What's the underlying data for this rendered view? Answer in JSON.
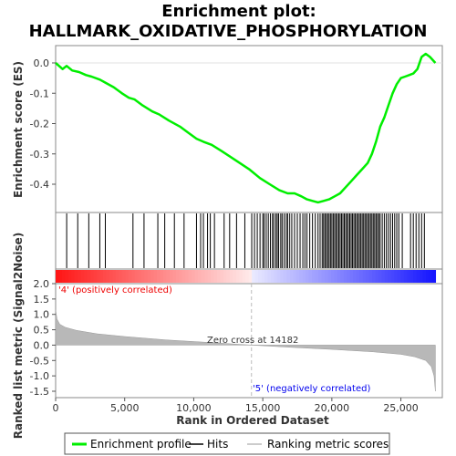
{
  "chart_data": {
    "type": "line",
    "title_line1": "Enrichment plot:",
    "title_line2": "HALLMARK_OXIDATIVE_PHOSPHORYLATION",
    "ylabel_top": "Enrichment score (ES)",
    "ylabel_bottom": "Ranked list metric (Signal2Noise)",
    "xlabel": "Rank in Ordered Dataset",
    "xlim": [
      0,
      28000
    ],
    "es_ylim": [
      -0.5,
      0.05
    ],
    "metric_ylim": [
      -1.6,
      2.0
    ],
    "x_ticks": [
      0,
      5000,
      10000,
      15000,
      20000,
      25000
    ],
    "x_tick_labels": [
      "0",
      "5,000",
      "10,000",
      "15,000",
      "20,000",
      "25,000"
    ],
    "es_ticks": [
      0.0,
      -0.1,
      -0.2,
      -0.3,
      -0.4
    ],
    "es_tick_labels": [
      "0.0",
      "-0.1",
      "-0.2",
      "-0.3",
      "-0.4"
    ],
    "metric_ticks": [
      2.0,
      1.5,
      1.0,
      0.5,
      0.0,
      -0.5,
      -1.0,
      -1.5
    ],
    "metric_tick_labels": [
      "2.0",
      "1.5",
      "1.0",
      "0.5",
      "0.0",
      "-0.5",
      "-1.0",
      "-1.5"
    ],
    "positive_label": "'4' (positively correlated)",
    "negative_label": "'5' (negatively correlated)",
    "zero_cross_label": "Zero cross at 14182",
    "zero_cross": 14182,
    "n_genes": 27500,
    "legend": [
      "Enrichment profile",
      "Hits",
      "Ranking metric scores"
    ],
    "colors": {
      "enrichment": "#00ee00",
      "hits": "#000000",
      "metric_fill": "#b8b8b8",
      "positive_text": "#ee0000",
      "negative_text": "#0000ee",
      "zero_line": "#bbbbbb"
    },
    "es_profile": {
      "x": [
        0,
        500,
        800,
        1200,
        1700,
        2200,
        2600,
        3200,
        3600,
        4200,
        4800,
        5300,
        5700,
        6300,
        7000,
        7500,
        8200,
        9000,
        9600,
        10200,
        10700,
        11300,
        12000,
        13000,
        14000,
        14800,
        15500,
        16200,
        16800,
        17300,
        17800,
        18200,
        18600,
        19000,
        19400,
        19800,
        20200,
        20600,
        21000,
        21400,
        21800,
        22200,
        22600,
        22900,
        23200,
        23500,
        23800,
        24100,
        24400,
        24700,
        25000,
        25300,
        25600,
        25900,
        26200,
        26500,
        26800,
        27100,
        27500
      ],
      "y": [
        0.0,
        -0.02,
        -0.01,
        -0.025,
        -0.03,
        -0.04,
        -0.045,
        -0.055,
        -0.065,
        -0.08,
        -0.1,
        -0.115,
        -0.12,
        -0.14,
        -0.16,
        -0.17,
        -0.19,
        -0.21,
        -0.23,
        -0.25,
        -0.26,
        -0.27,
        -0.29,
        -0.32,
        -0.35,
        -0.38,
        -0.4,
        -0.42,
        -0.43,
        -0.43,
        -0.44,
        -0.45,
        -0.455,
        -0.46,
        -0.455,
        -0.45,
        -0.44,
        -0.43,
        -0.41,
        -0.39,
        -0.37,
        -0.35,
        -0.33,
        -0.3,
        -0.26,
        -0.21,
        -0.18,
        -0.14,
        -0.1,
        -0.07,
        -0.05,
        -0.045,
        -0.04,
        -0.035,
        -0.02,
        0.02,
        0.03,
        0.02,
        0.0
      ]
    },
    "metric_profile": {
      "x": [
        0,
        100,
        300,
        700,
        1500,
        3000,
        5000,
        8000,
        11000,
        14182,
        17000,
        20000,
        23000,
        25000,
        26000,
        26800,
        27200,
        27400,
        27500
      ],
      "y": [
        1.15,
        0.85,
        0.68,
        0.58,
        0.48,
        0.37,
        0.28,
        0.17,
        0.09,
        0.0,
        -0.07,
        -0.14,
        -0.22,
        -0.3,
        -0.38,
        -0.5,
        -0.7,
        -1.0,
        -1.5
      ]
    },
    "hits": [
      800,
      1600,
      2400,
      3200,
      3600,
      5600,
      6400,
      7400,
      7900,
      8600,
      9300,
      10200,
      10500,
      10700,
      11000,
      11200,
      11500,
      12200,
      12600,
      13100,
      13700,
      14200,
      14400,
      14600,
      14800,
      15000,
      15100,
      15250,
      15400,
      15550,
      15700,
      15800,
      15950,
      16050,
      16150,
      16300,
      16400,
      16550,
      16700,
      16800,
      16950,
      17100,
      17300,
      17500,
      17700,
      17900,
      18050,
      18200,
      18400,
      18600,
      18800,
      19000,
      19150,
      19300,
      19400,
      19500,
      19600,
      19700,
      19800,
      19900,
      20000,
      20100,
      20200,
      20300,
      20400,
      20500,
      20600,
      20700,
      20800,
      20900,
      21000,
      21100,
      21200,
      21300,
      21400,
      21500,
      21600,
      21700,
      21800,
      21900,
      22000,
      22100,
      22200,
      22300,
      22400,
      22500,
      22600,
      22700,
      22800,
      22900,
      23000,
      23100,
      23200,
      23300,
      23400,
      23500,
      23650,
      23800,
      23950,
      24100,
      24250,
      24400,
      24550,
      24700,
      24850,
      25100,
      25700,
      25900,
      26100,
      26300,
      26500,
      26700
    ]
  }
}
